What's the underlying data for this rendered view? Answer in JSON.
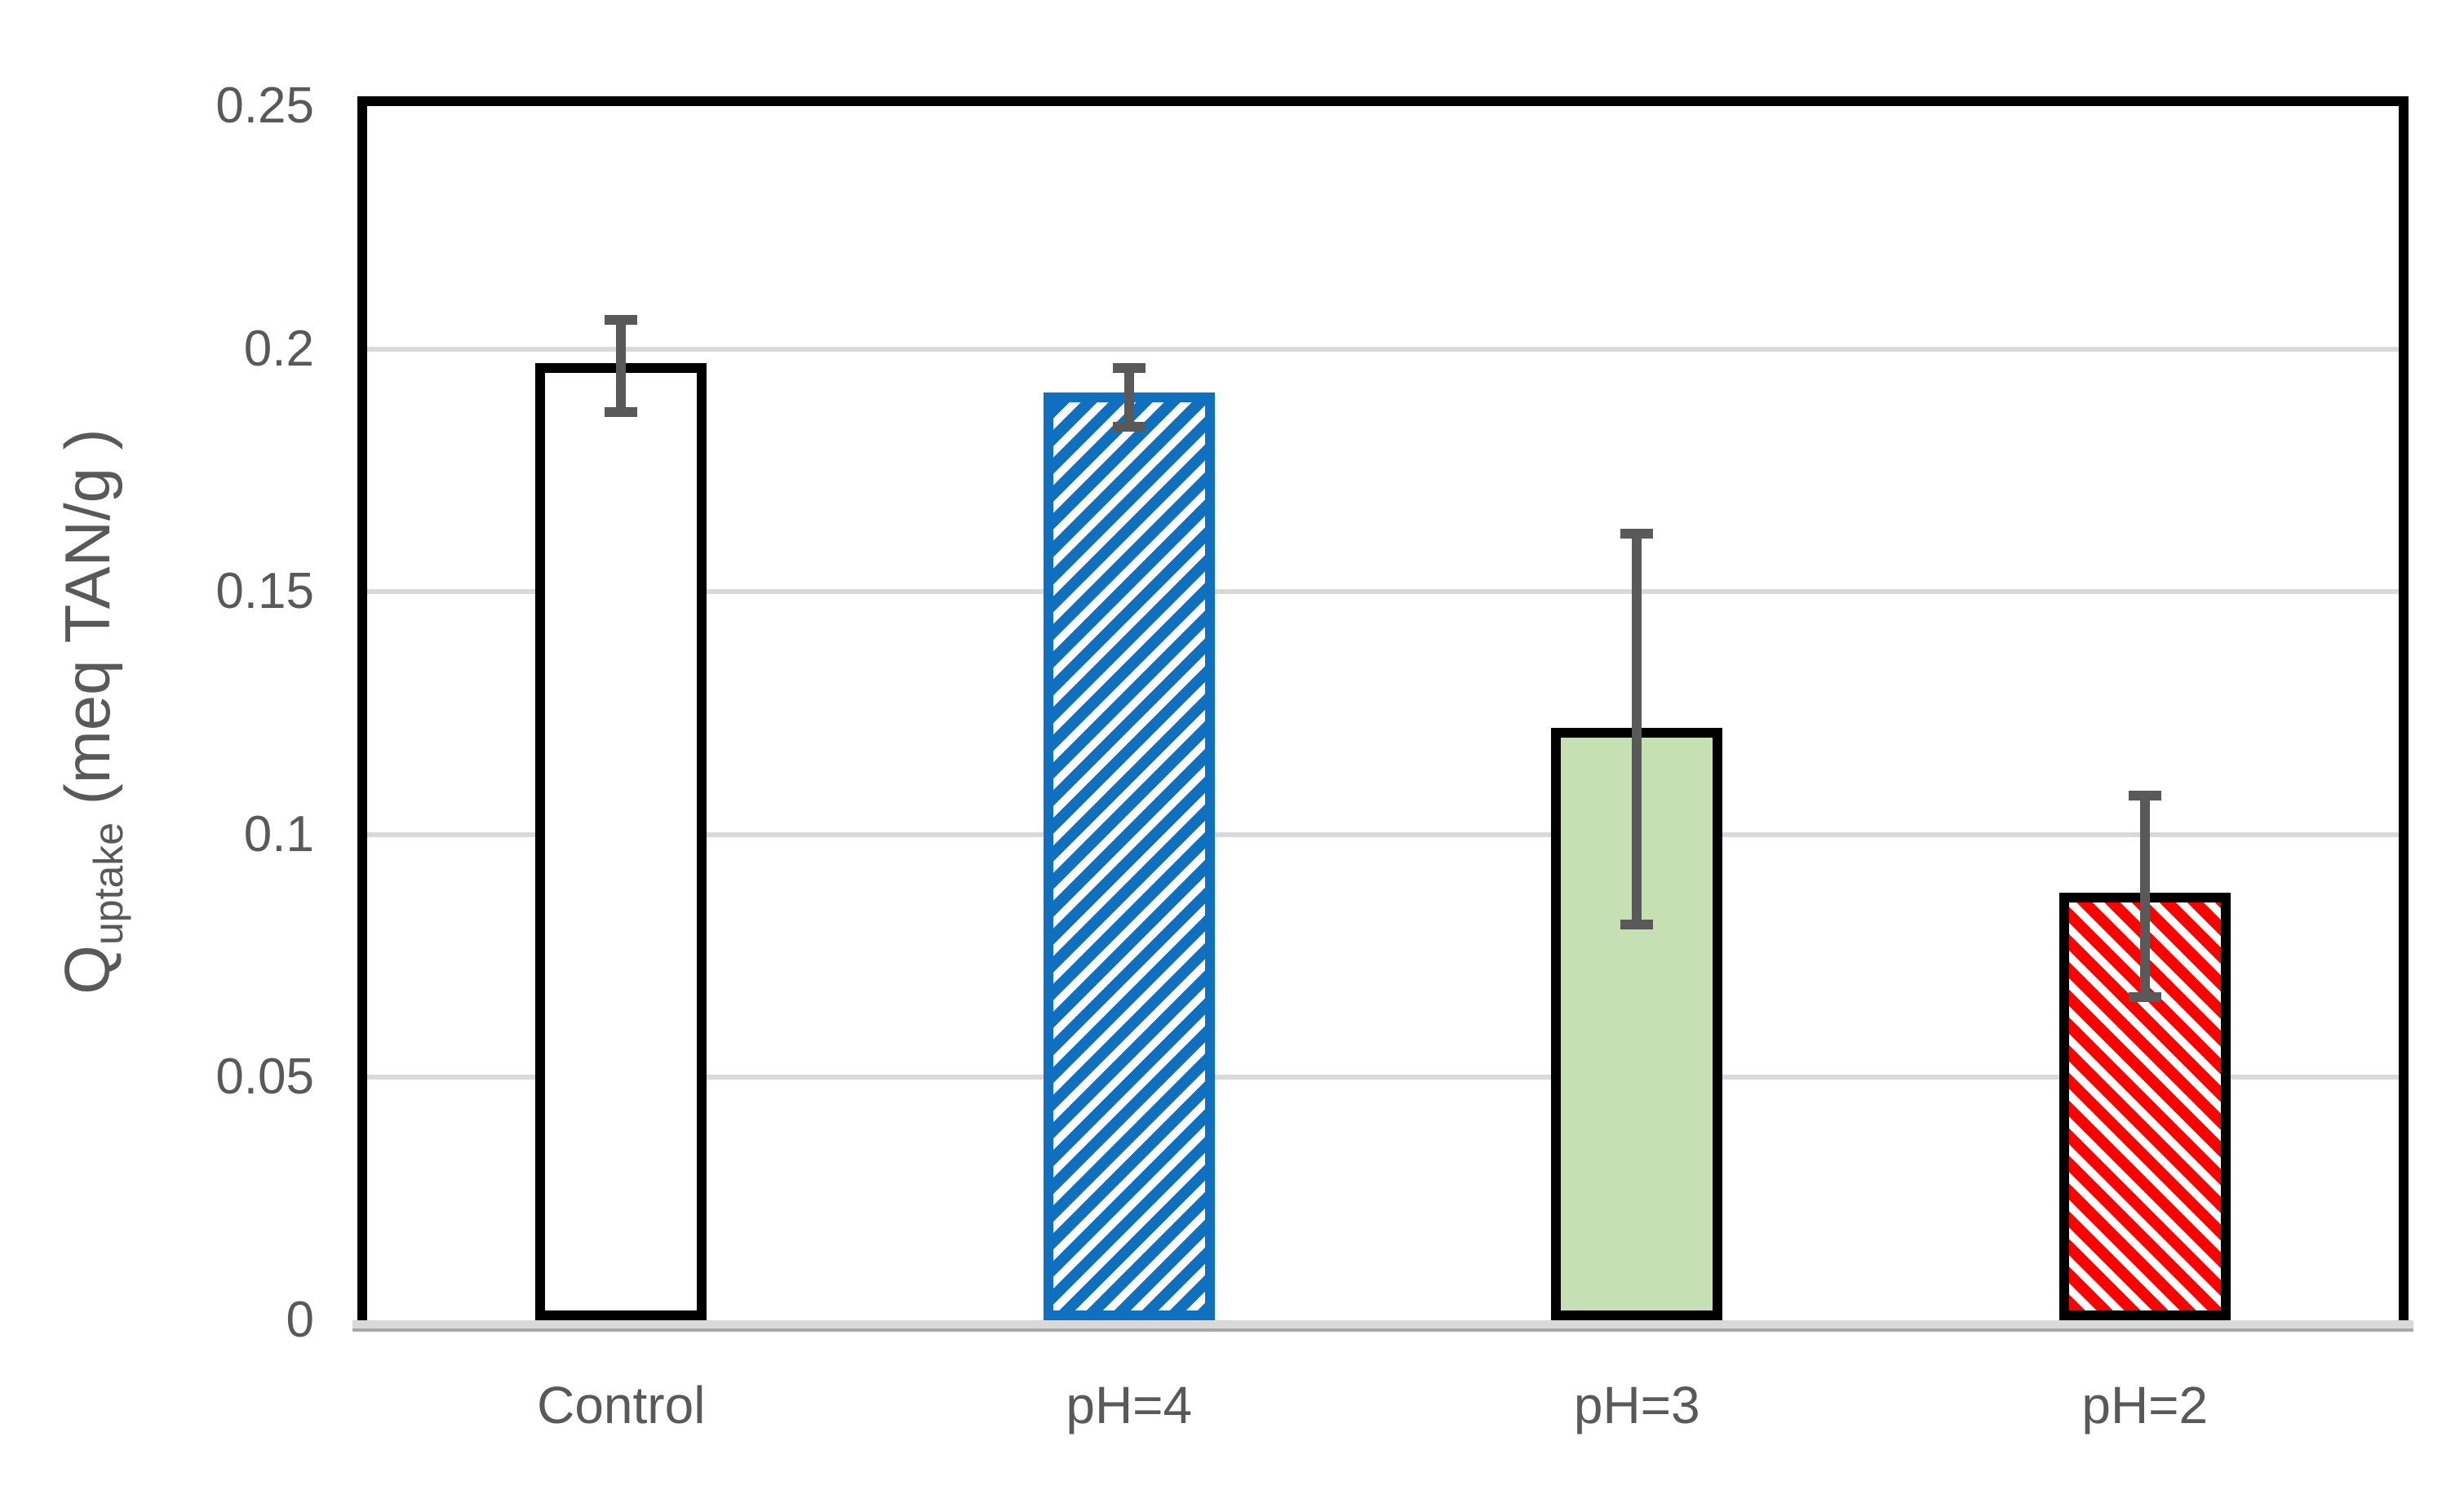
{
  "figure": {
    "background": "#ffffff",
    "text_color": "#595959",
    "gridline_color": "#D9D9D9",
    "frame_color": "#000000",
    "axis_band_color": "#D9D9D9",
    "axis_band_edge_color": "#A8A8A8",
    "error_bar_color": "#595959"
  },
  "y_axis": {
    "title_main": "Q",
    "title_sub": "uptake",
    "title_rest": " (meq TAN/g )",
    "ticks": [
      "0",
      "0.05",
      "0.1",
      "0.15",
      "0.2",
      "0.25"
    ]
  },
  "chart_data": {
    "type": "bar",
    "title": "",
    "xlabel": "",
    "ylabel": "Q_uptake (meq TAN/g)",
    "categories": [
      "Control",
      "pH=4",
      "pH=3",
      "pH=2"
    ],
    "values": [
      0.197,
      0.191,
      0.122,
      0.088
    ],
    "error_plus": [
      0.01,
      0.006,
      0.041,
      0.021
    ],
    "error_minus": [
      0.011,
      0.008,
      0.0415,
      0.0225
    ],
    "ylim": [
      0,
      0.25
    ],
    "ytick_step": 0.05,
    "grid": true,
    "legend": false,
    "bar_styles": [
      {
        "name": "control",
        "fill": "#FFFFFF",
        "pattern": "none",
        "pattern_color": "#FFFFFF",
        "border": "#000000"
      },
      {
        "name": "ph4",
        "fill": "#FFFFFF",
        "pattern": "diagonal-up",
        "pattern_color": "#0F70C0",
        "border": "#0F70C0"
      },
      {
        "name": "ph3",
        "fill": "#C6E0B4",
        "pattern": "none",
        "pattern_color": "#C6E0B4",
        "border": "#000000"
      },
      {
        "name": "ph2",
        "fill": "#FFFFFF",
        "pattern": "diagonal-down",
        "pattern_color": "#FF0000",
        "border": "#000000"
      }
    ]
  }
}
